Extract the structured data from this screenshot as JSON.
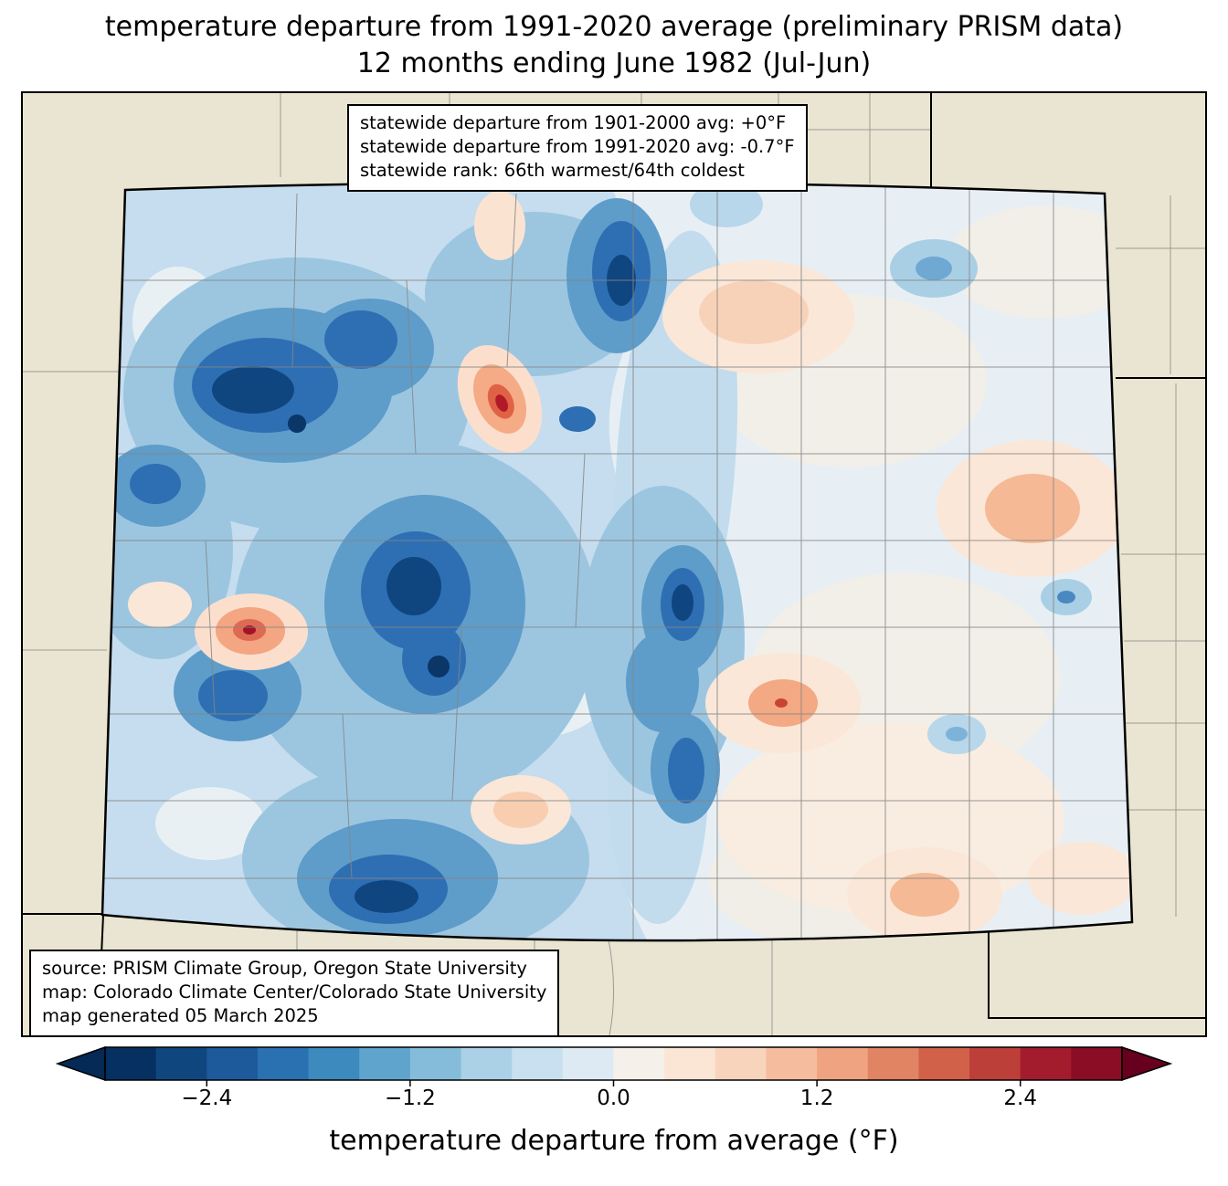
{
  "title": {
    "line1": "temperature departure from 1991-2020 average (preliminary PRISM data)",
    "line2": "12 months ending June 1982 (Jul-Jun)"
  },
  "stats_box": {
    "line1": "statewide departure from 1901-2000 avg: +0°F",
    "line2": "statewide departure from 1991-2020 avg: -0.7°F",
    "line3": "statewide rank: 66th warmest/64th coldest"
  },
  "source_box": {
    "line1": "source: PRISM Climate Group, Oregon State University",
    "line2": "map: Colorado Climate Center/Colorado State University",
    "line3": "map generated 05 March 2025"
  },
  "colorbar": {
    "label": "temperature departure from average (°F)",
    "ticks": [
      "−2.4",
      "−1.2",
      "0.0",
      "1.2",
      "2.4"
    ],
    "tick_values": [
      -2.4,
      -1.2,
      0.0,
      1.2,
      2.4
    ],
    "range": [
      -3.0,
      3.0
    ],
    "colors": [
      "#053061",
      "#10467e",
      "#1c5a9c",
      "#2a71b2",
      "#3d8abe",
      "#5ea4cd",
      "#85bcda",
      "#aad1e5",
      "#c8e0ef",
      "#ddeaf3",
      "#f6f0ea",
      "#fbe5d4",
      "#f9d4bc",
      "#f5bd9e",
      "#f0a380",
      "#e18464",
      "#d26149",
      "#bc3f3a",
      "#a31c2e",
      "#8a0c25"
    ],
    "left_arrow_color": "#042a55",
    "right_arrow_color": "#67001f"
  },
  "map": {
    "region": "Colorado",
    "out_of_state_color": "#e9e5d2",
    "state_border_color": "#000000",
    "county_line_color": "#858585"
  },
  "chart_data": {
    "type": "heatmap",
    "title": "temperature departure from 1991-2020 average (preliminary PRISM data) — 12 months ending June 1982 (Jul-Jun)",
    "legend_label": "temperature departure from average (°F)",
    "legend_ticks": [
      -2.4,
      -1.2,
      0.0,
      1.2,
      2.4
    ],
    "legend_range": [
      -3.0,
      3.0
    ],
    "statewide_departure_from_1901_2000_avg": "+0°F",
    "statewide_departure_from_1991_2020_avg": "-0.7°F",
    "statewide_rank": "66th warmest/64th coldest"
  }
}
